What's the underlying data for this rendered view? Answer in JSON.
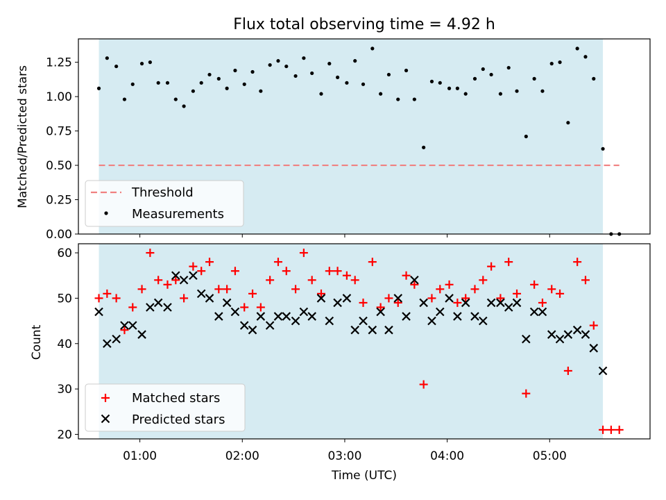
{
  "chart_data": [
    {
      "type": "scatter",
      "title": "Flux total observing time = 4.92 h",
      "ylabel": "Matched/Predicted stars",
      "xlabel": "",
      "ylim": [
        0,
        1.42
      ],
      "yticks": [
        0,
        0.25,
        0.5,
        0.75,
        1.0,
        1.25
      ],
      "ytick_labels": [
        "0.00",
        "0.25",
        "0.50",
        "0.75",
        "1.00",
        "1.25"
      ],
      "xlim_hours": [
        0.4,
        5.98
      ],
      "shaded_span_hours": [
        0.6,
        5.52
      ],
      "threshold": {
        "name": "Threshold",
        "value": 0.5,
        "x_range_hours": [
          0.6,
          5.68
        ]
      },
      "series": [
        {
          "name": "Measurements",
          "x_hours": [
            0.6,
            0.68,
            0.77,
            0.85,
            0.93,
            1.02,
            1.1,
            1.18,
            1.27,
            1.35,
            1.43,
            1.52,
            1.6,
            1.68,
            1.77,
            1.85,
            1.93,
            2.02,
            2.1,
            2.18,
            2.27,
            2.35,
            2.43,
            2.52,
            2.6,
            2.68,
            2.77,
            2.85,
            2.93,
            3.02,
            3.1,
            3.18,
            3.27,
            3.35,
            3.43,
            3.52,
            3.6,
            3.68,
            3.77,
            3.85,
            3.93,
            4.02,
            4.1,
            4.18,
            4.27,
            4.35,
            4.43,
            4.52,
            4.6,
            4.68,
            4.77,
            4.85,
            4.93,
            5.02,
            5.1,
            5.18,
            5.27,
            5.35,
            5.43,
            5.52,
            5.6,
            5.68
          ],
          "values": [
            1.06,
            1.28,
            1.22,
            0.98,
            1.09,
            1.24,
            1.25,
            1.1,
            1.1,
            0.98,
            0.93,
            1.04,
            1.1,
            1.16,
            1.13,
            1.06,
            1.19,
            1.09,
            1.18,
            1.04,
            1.23,
            1.26,
            1.22,
            1.15,
            1.28,
            1.17,
            1.02,
            1.24,
            1.14,
            1.1,
            1.26,
            1.09,
            1.35,
            1.02,
            1.16,
            0.98,
            1.19,
            0.98,
            0.63,
            1.11,
            1.1,
            1.06,
            1.06,
            1.02,
            1.13,
            1.2,
            1.16,
            1.02,
            1.21,
            1.04,
            0.71,
            1.13,
            1.04,
            1.24,
            1.25,
            0.81,
            1.35,
            1.29,
            1.13,
            0.62,
            0.0,
            0.0
          ]
        }
      ],
      "legend": {
        "placement": "lower-left",
        "entries": [
          "Threshold",
          "Measurements"
        ]
      }
    },
    {
      "type": "scatter",
      "title": "",
      "xlabel": "Time (UTC)",
      "ylabel": "Count",
      "ylim": [
        19,
        62
      ],
      "yticks": [
        20,
        30,
        40,
        50,
        60
      ],
      "ytick_labels": [
        "20",
        "30",
        "40",
        "50",
        "60"
      ],
      "xlim_hours": [
        0.4,
        5.98
      ],
      "xticks_hours": [
        1,
        2,
        3,
        4,
        5
      ],
      "xtick_labels": [
        "01:00",
        "02:00",
        "03:00",
        "04:00",
        "05:00"
      ],
      "shaded_span_hours": [
        0.6,
        5.52
      ],
      "x_hours": [
        0.6,
        0.68,
        0.77,
        0.85,
        0.93,
        1.02,
        1.1,
        1.18,
        1.27,
        1.35,
        1.43,
        1.52,
        1.6,
        1.68,
        1.77,
        1.85,
        1.93,
        2.02,
        2.1,
        2.18,
        2.27,
        2.35,
        2.43,
        2.52,
        2.6,
        2.68,
        2.77,
        2.85,
        2.93,
        3.02,
        3.1,
        3.18,
        3.27,
        3.35,
        3.43,
        3.52,
        3.6,
        3.68,
        3.77,
        3.85,
        3.93,
        4.02,
        4.1,
        4.18,
        4.27,
        4.35,
        4.43,
        4.52,
        4.6,
        4.68,
        4.77,
        4.85,
        4.93,
        5.02,
        5.1,
        5.18,
        5.27,
        5.35,
        5.43,
        5.52,
        5.6,
        5.68
      ],
      "series": [
        {
          "name": "Matched stars",
          "values": [
            50,
            51,
            50,
            43,
            48,
            52,
            60,
            54,
            53,
            54,
            50,
            57,
            56,
            58,
            52,
            52,
            56,
            48,
            51,
            48,
            54,
            58,
            56,
            52,
            60,
            54,
            51,
            56,
            56,
            55,
            54,
            49,
            58,
            48,
            50,
            49,
            55,
            53,
            31,
            50,
            52,
            53,
            49,
            50,
            52,
            54,
            57,
            50,
            58,
            51,
            29,
            53,
            49,
            52,
            51,
            34,
            58,
            54,
            44,
            21,
            21,
            21
          ]
        },
        {
          "name": "Predicted stars",
          "values": [
            47,
            40,
            41,
            44,
            44,
            42,
            48,
            49,
            48,
            55,
            54,
            55,
            51,
            50,
            46,
            49,
            47,
            44,
            43,
            46,
            44,
            46,
            46,
            45,
            47,
            46,
            50,
            45,
            49,
            50,
            43,
            45,
            43,
            47,
            43,
            50,
            46,
            54,
            49,
            45,
            47,
            50,
            46,
            49,
            46,
            45,
            49,
            49,
            48,
            49,
            41,
            47,
            47,
            42,
            41,
            42,
            43,
            42,
            39,
            34
          ]
        }
      ],
      "legend": {
        "placement": "lower-left",
        "entries": [
          "Matched stars",
          "Predicted stars"
        ]
      }
    }
  ],
  "colors": {
    "shade": "#add8e6",
    "threshold": "#f08080",
    "measurement": "#000000",
    "matched": "#ff0000",
    "predicted": "#000000"
  }
}
